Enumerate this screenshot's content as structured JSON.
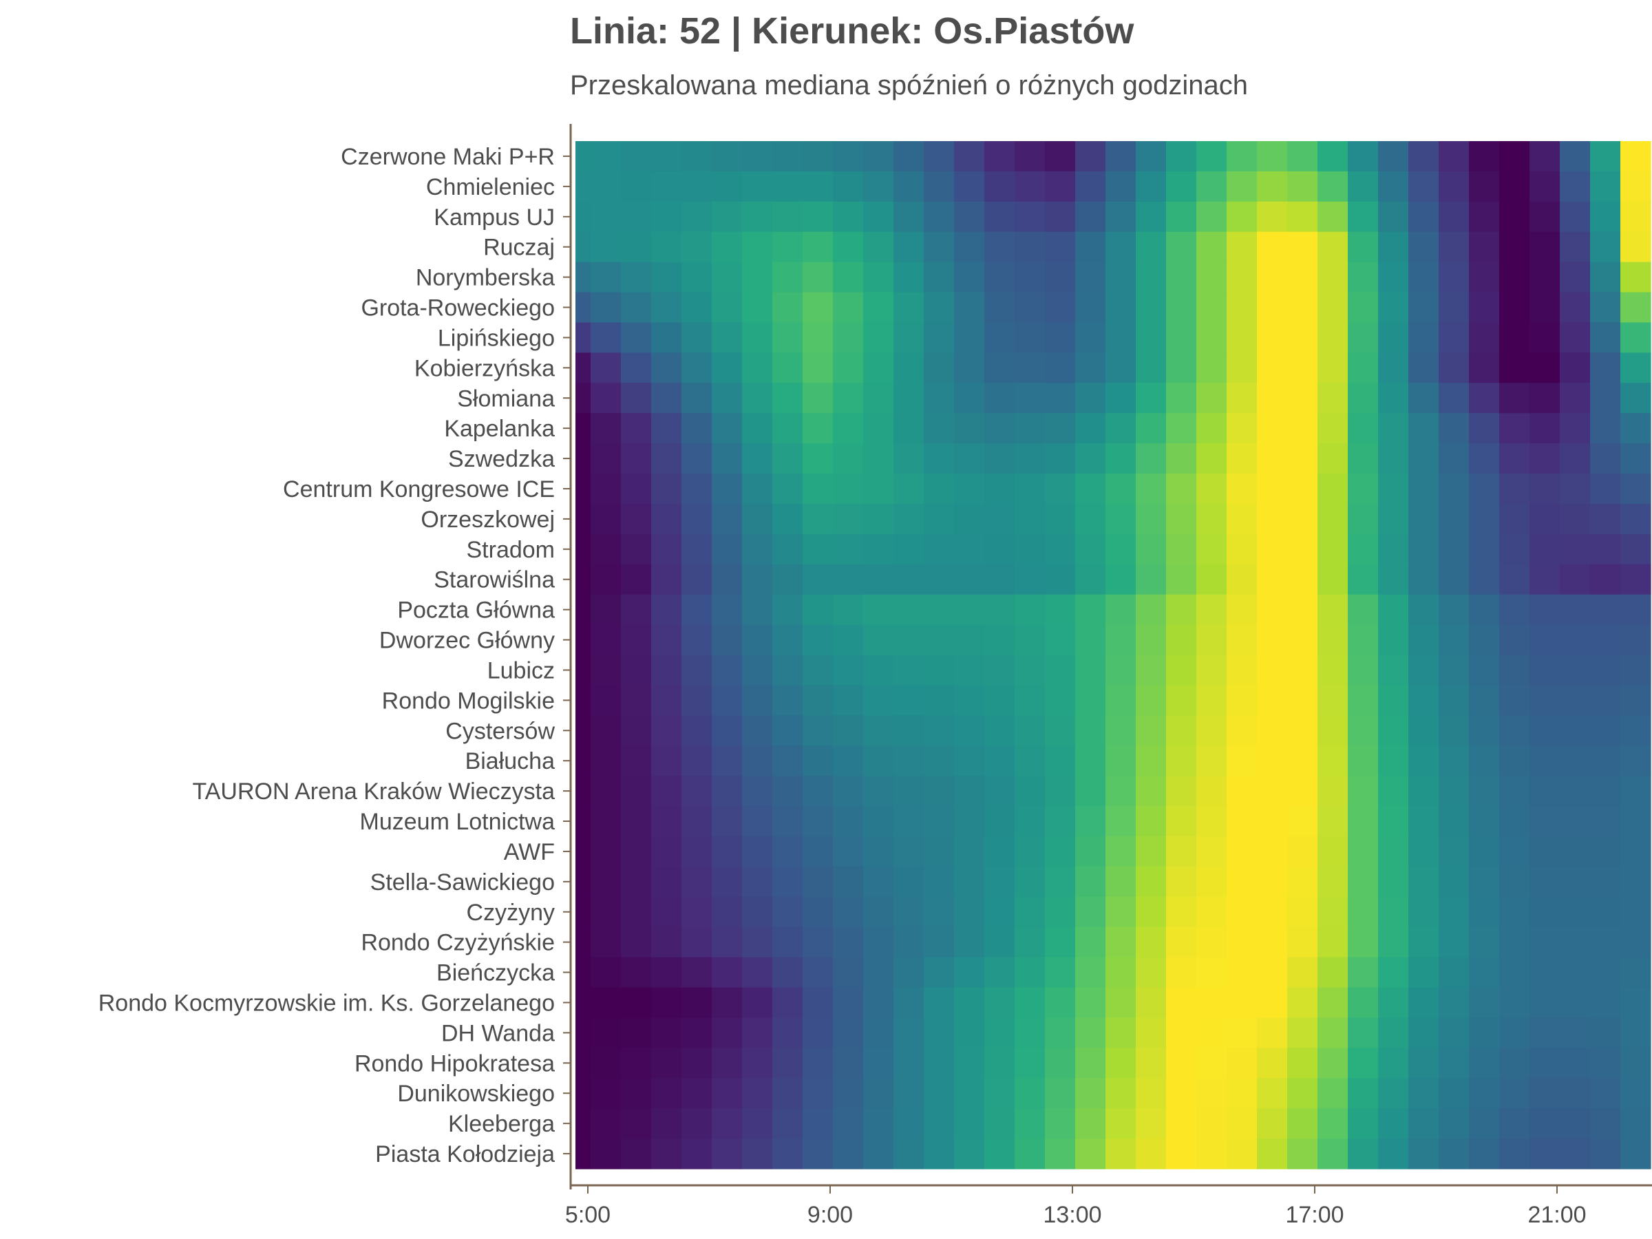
{
  "title": "Linia: 52 | Kierunek: Os.Piastów",
  "subtitle": "Przeskalowana mediana spóźnień o różnych godzinach",
  "chart_data": {
    "type": "heatmap",
    "title": "Linia: 52 | Kierunek: Os.Piastów",
    "subtitle": "Przeskalowana mediana spóźnień o różnych godzinach",
    "xlabel": "",
    "ylabel": "",
    "colormap": "viridis",
    "value_range": [
      0,
      1
    ],
    "x_ticks": [
      "5:00",
      "9:00",
      "13:00",
      "17:00",
      "21:00"
    ],
    "x_range": [
      5,
      23
    ],
    "x_step_hours": 0.5,
    "x_hours": [
      5,
      5.5,
      6,
      6.5,
      7,
      7.5,
      8,
      8.5,
      9,
      9.5,
      10,
      10.5,
      11,
      11.5,
      12,
      12.5,
      13,
      13.5,
      14,
      14.5,
      15,
      15.5,
      16,
      16.5,
      17,
      17.5,
      18,
      18.5,
      19,
      19.5,
      20,
      20.5,
      21,
      21.5,
      22,
      22.5
    ],
    "stops": [
      "Czerwone Maki P+R",
      "Chmieleniec",
      "Kampus UJ",
      "Ruczaj",
      "Norymberska",
      "Grota-Roweckiego",
      "Lipińskiego",
      "Kobierzyńska",
      "Słomiana",
      "Kapelanka",
      "Szwedzka",
      "Centrum Kongresowe ICE",
      "Orzeszkowej",
      "Stradom",
      "Starowiślna",
      "Poczta Główna",
      "Dworzec Główny",
      "Lubicz",
      "Rondo Mogilskie",
      "Cystersów",
      "Białucha",
      "TAURON Arena Kraków Wieczysta",
      "Muzeum Lotnictwa",
      "AWF",
      "Stella-Sawickiego",
      "Czyżyny",
      "Rondo Czyżyńskie",
      "Bieńczycka",
      "Rondo Kocmyrzowskie im. Ks. Gorzelanego",
      "DH Wanda",
      "Rondo Hipokratesa",
      "Dunikowskiego",
      "Kleeberga",
      "Piasta Kołodzieja"
    ],
    "control_hours": [
      5,
      6,
      7,
      8,
      9,
      10,
      11,
      12,
      13,
      14,
      15,
      16,
      16.5,
      17,
      17.5,
      18,
      19,
      20,
      20.5,
      21,
      21.5,
      22,
      22.5
    ],
    "control_rows": [
      {
        "row": 0,
        "values": [
          0.5,
          0.48,
          0.47,
          0.45,
          0.44,
          0.4,
          0.28,
          0.12,
          0.06,
          0.3,
          0.55,
          0.72,
          0.76,
          0.72,
          0.62,
          0.48,
          0.22,
          0.02,
          0.0,
          0.08,
          0.3,
          0.55,
          1.0
        ]
      },
      {
        "row": 3,
        "values": [
          0.48,
          0.5,
          0.54,
          0.62,
          0.66,
          0.56,
          0.4,
          0.28,
          0.26,
          0.45,
          0.7,
          0.92,
          1.0,
          1.0,
          0.92,
          0.65,
          0.32,
          0.08,
          0.0,
          0.02,
          0.2,
          0.48,
          0.98
        ]
      },
      {
        "row": 5,
        "values": [
          0.3,
          0.4,
          0.5,
          0.62,
          0.74,
          0.62,
          0.46,
          0.32,
          0.28,
          0.45,
          0.7,
          0.92,
          1.0,
          1.0,
          0.92,
          0.68,
          0.34,
          0.1,
          0.0,
          0.02,
          0.15,
          0.4,
          0.78
        ]
      },
      {
        "row": 7,
        "values": [
          0.05,
          0.25,
          0.42,
          0.58,
          0.72,
          0.6,
          0.44,
          0.34,
          0.33,
          0.45,
          0.7,
          0.92,
          1.0,
          1.0,
          0.92,
          0.66,
          0.32,
          0.08,
          0.0,
          0.0,
          0.1,
          0.3,
          0.55
        ]
      },
      {
        "row": 9,
        "values": [
          0.0,
          0.12,
          0.32,
          0.52,
          0.66,
          0.58,
          0.46,
          0.42,
          0.44,
          0.56,
          0.76,
          0.95,
          1.0,
          1.0,
          0.9,
          0.64,
          0.42,
          0.22,
          0.12,
          0.1,
          0.15,
          0.3,
          0.38
        ]
      },
      {
        "row": 11,
        "values": [
          0.0,
          0.1,
          0.26,
          0.46,
          0.6,
          0.58,
          0.52,
          0.5,
          0.53,
          0.65,
          0.82,
          0.98,
          1.0,
          1.0,
          0.88,
          0.66,
          0.42,
          0.28,
          0.2,
          0.18,
          0.2,
          0.24,
          0.28
        ]
      },
      {
        "row": 14,
        "values": [
          0.0,
          0.05,
          0.22,
          0.4,
          0.48,
          0.48,
          0.48,
          0.48,
          0.5,
          0.62,
          0.8,
          0.96,
          1.0,
          1.0,
          0.88,
          0.64,
          0.42,
          0.28,
          0.22,
          0.16,
          0.14,
          0.12,
          0.14
        ]
      },
      {
        "row": 15,
        "values": [
          0.0,
          0.08,
          0.25,
          0.4,
          0.52,
          0.56,
          0.56,
          0.56,
          0.6,
          0.7,
          0.86,
          0.97,
          1.0,
          1.0,
          0.9,
          0.7,
          0.46,
          0.34,
          0.28,
          0.26,
          0.26,
          0.26,
          0.26
        ]
      },
      {
        "row": 21,
        "values": [
          0.0,
          0.06,
          0.16,
          0.28,
          0.36,
          0.42,
          0.44,
          0.48,
          0.56,
          0.74,
          0.92,
          1.0,
          1.0,
          1.0,
          0.92,
          0.74,
          0.52,
          0.4,
          0.36,
          0.34,
          0.34,
          0.34,
          0.36
        ]
      },
      {
        "row": 26,
        "values": [
          0.0,
          0.06,
          0.12,
          0.2,
          0.28,
          0.36,
          0.42,
          0.5,
          0.62,
          0.82,
          0.98,
          1.0,
          1.0,
          0.98,
          0.9,
          0.74,
          0.54,
          0.42,
          0.38,
          0.36,
          0.36,
          0.36,
          0.36
        ]
      },
      {
        "row": 28,
        "values": [
          0.0,
          0.0,
          0.02,
          0.1,
          0.24,
          0.36,
          0.48,
          0.56,
          0.66,
          0.84,
          1.0,
          1.0,
          1.0,
          0.94,
          0.84,
          0.68,
          0.5,
          0.4,
          0.38,
          0.36,
          0.36,
          0.36,
          0.38
        ]
      },
      {
        "row": 33,
        "values": [
          0.0,
          0.04,
          0.1,
          0.18,
          0.28,
          0.38,
          0.48,
          0.58,
          0.72,
          0.92,
          1.0,
          0.98,
          0.9,
          0.82,
          0.72,
          0.56,
          0.42,
          0.34,
          0.3,
          0.28,
          0.28,
          0.3,
          0.36
        ]
      }
    ]
  }
}
